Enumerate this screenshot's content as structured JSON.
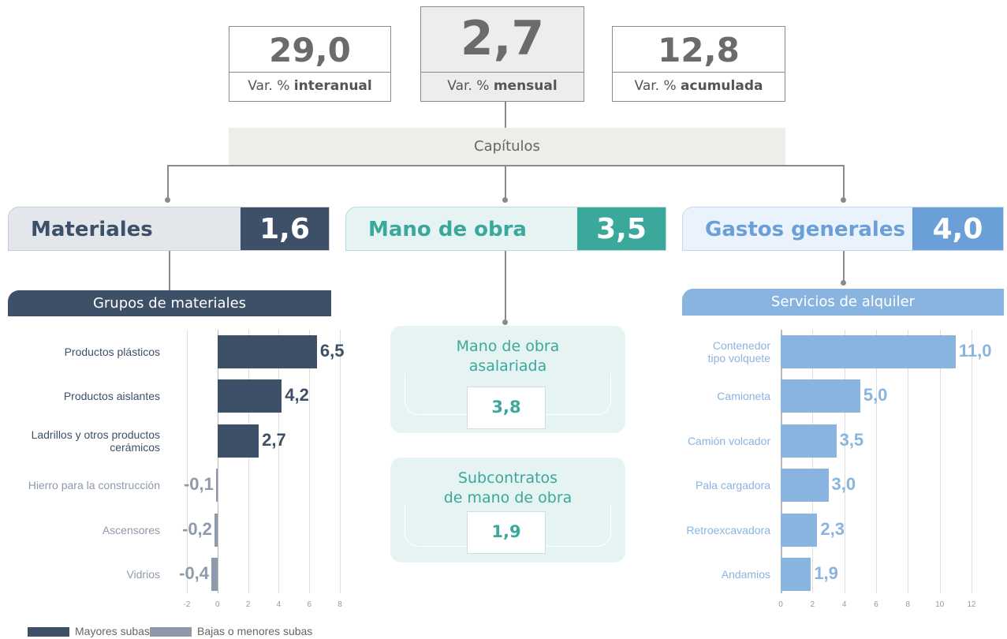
{
  "kpis": [
    {
      "value": "29,0",
      "label": "Var. %",
      "label_bold": "interanual"
    },
    {
      "value": "2,7",
      "label": "Var. %",
      "label_bold": "mensual"
    },
    {
      "value": "12,8",
      "label": "Var. %",
      "label_bold": "acumulada"
    }
  ],
  "chapters_title": "Capítulos",
  "chapters": [
    {
      "name": "Materiales",
      "value": "1,6"
    },
    {
      "name": "Mano de obra",
      "value": "3,5"
    },
    {
      "name": "Gastos generales",
      "value": "4,0"
    }
  ],
  "labor_items": [
    {
      "name": "Mano de obra\nasalariada",
      "value": "3,8"
    },
    {
      "name": "Subcontratos\nde mano de obra",
      "value": "1,9"
    }
  ],
  "chart_data": [
    {
      "type": "bar",
      "orientation": "horizontal",
      "title": "Grupos de materiales",
      "categories": [
        "Productos plásticos",
        "Productos aislantes",
        "Ladrillos y otros productos\ncerámicos",
        "Hierro para la construcción",
        "Ascensores",
        "Vidrios"
      ],
      "values": [
        6.5,
        4.2,
        2.7,
        -0.1,
        -0.2,
        -0.4
      ],
      "value_labels": [
        "6,5",
        "4,2",
        "2,7",
        "-0,1",
        "-0,2",
        "-0,4"
      ],
      "colors": [
        "#3d5068",
        "#3d5068",
        "#3d5068",
        "#8e9aab",
        "#8e9aab",
        "#8e9aab"
      ],
      "xlim": [
        -2,
        8
      ],
      "xticks": [
        -2,
        0,
        2,
        4,
        6,
        8
      ],
      "grid": true,
      "legend": {
        "position": "bottom-left",
        "items": [
          {
            "name": "Mayores subas",
            "color": "#3d5068"
          },
          {
            "name": "Bajas o menores subas",
            "color": "#8e9aab"
          }
        ]
      }
    },
    {
      "type": "bar",
      "orientation": "horizontal",
      "title": "Servicios de alquiler",
      "categories": [
        "Contenedor\ntipo volquete",
        "Camioneta",
        "Camión volcador",
        "Pala cargadora",
        "Retroexcavadora",
        "Andamios"
      ],
      "values": [
        11.0,
        5.0,
        3.5,
        3.0,
        2.3,
        1.9
      ],
      "value_labels": [
        "11,0",
        "5,0",
        "3,5",
        "3,0",
        "2,3",
        "1,9"
      ],
      "colors": [
        "#8ab4e0",
        "#8ab4e0",
        "#8ab4e0",
        "#8ab4e0",
        "#8ab4e0",
        "#8ab4e0"
      ],
      "xlim": [
        0,
        12
      ],
      "xticks": [
        0,
        2,
        4,
        6,
        8,
        10,
        12
      ],
      "grid": true
    }
  ]
}
